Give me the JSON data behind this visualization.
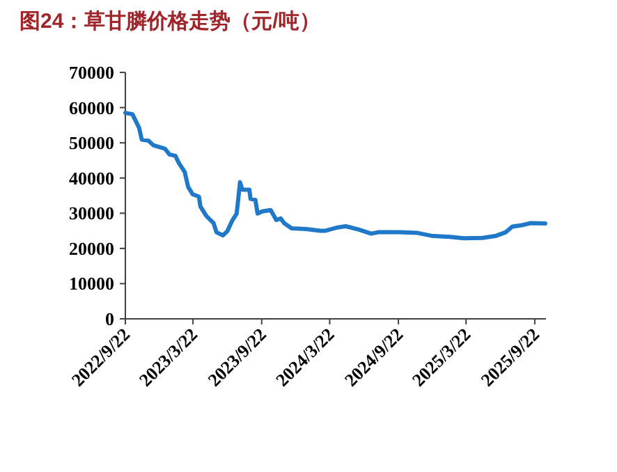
{
  "chart_data": {
    "type": "line",
    "title": "图24：草甘膦价格走势（元/吨）",
    "x": [
      "2022-09-22",
      "2022-10-11",
      "2022-10-29",
      "2022-11-05",
      "2022-11-23",
      "2022-12-06",
      "2023-01-06",
      "2023-01-18",
      "2023-02-03",
      "2023-02-12",
      "2023-02-28",
      "2023-03-09",
      "2023-03-21",
      "2023-04-07",
      "2023-04-11",
      "2023-04-27",
      "2023-05-16",
      "2023-05-24",
      "2023-06-10",
      "2023-06-22",
      "2023-07-05",
      "2023-07-17",
      "2023-07-26",
      "2023-08-01",
      "2023-08-20",
      "2023-08-23",
      "2023-09-05",
      "2023-09-11",
      "2023-09-23",
      "2023-10-16",
      "2023-10-31",
      "2023-11-12",
      "2023-11-21",
      "2023-12-11",
      "2024-01-19",
      "2024-02-26",
      "2024-03-09",
      "2024-04-09",
      "2024-05-04",
      "2024-06-10",
      "2024-07-11",
      "2024-07-30",
      "2024-09-24",
      "2024-11-12",
      "2024-12-19",
      "2025-02-07",
      "2025-03-16",
      "2025-05-05",
      "2025-06-11",
      "2025-07-06",
      "2025-07-24",
      "2025-08-18",
      "2025-09-12",
      "2025-10-20"
    ],
    "series": [
      {
        "color": "#1f78c8",
        "values": [
          58500,
          58100,
          54200,
          50900,
          50600,
          49300,
          48300,
          46700,
          46300,
          44300,
          41700,
          37500,
          35400,
          34700,
          31900,
          29200,
          27200,
          24600,
          23700,
          24900,
          27900,
          29900,
          38800,
          36700,
          36700,
          34100,
          33800,
          29900,
          30500,
          30900,
          28100,
          28500,
          27200,
          25700,
          25500,
          25000,
          25000,
          25900,
          26300,
          25300,
          24200,
          24600,
          24600,
          24400,
          23600,
          23300,
          22900,
          23000,
          23600,
          24600,
          26200,
          26600,
          27200,
          27100
        ]
      }
    ],
    "xlim": [
      "2022-09-22",
      "2025-10-22"
    ],
    "xticks": [
      {
        "value": "2022-09-22",
        "label": "2022/9/22"
      },
      {
        "value": "2023-03-22",
        "label": "2023/3/22"
      },
      {
        "value": "2023-09-22",
        "label": "2023/9/22"
      },
      {
        "value": "2024-03-22",
        "label": "2024/3/22"
      },
      {
        "value": "2024-09-22",
        "label": "2024/9/22"
      },
      {
        "value": "2025-03-22",
        "label": "2025/3/22"
      },
      {
        "value": "2025-09-22",
        "label": "2025/9/22"
      }
    ],
    "ylim": [
      0,
      70000
    ],
    "yticks": [
      0,
      10000,
      20000,
      30000,
      40000,
      50000,
      60000,
      70000
    ],
    "grid": false,
    "marker": "none",
    "line_style": "solid"
  }
}
